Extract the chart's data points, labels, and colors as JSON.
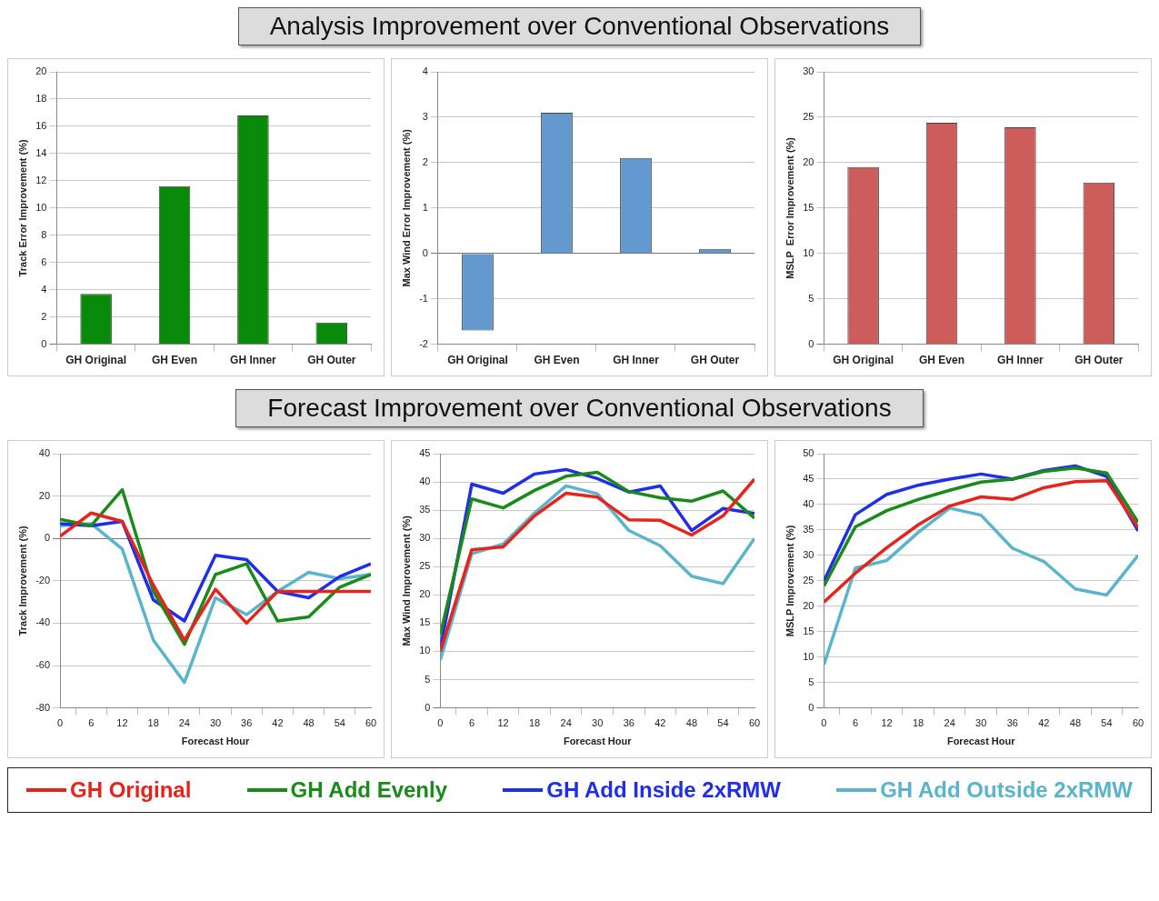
{
  "chart_data": [
    {
      "type": "bar",
      "title": "Analysis Improvement over Conventional Observations",
      "ylabel": "Track Error Improvement (%)",
      "categories": [
        "GH Original",
        "GH Even",
        "GH Inner",
        "GH Outer"
      ],
      "values": [
        3.7,
        11.6,
        16.8,
        1.6
      ],
      "color": "#0a8a0a",
      "ylim": [
        0,
        20
      ],
      "yticks": [
        0,
        2,
        4,
        6,
        8,
        10,
        12,
        14,
        16,
        18,
        20
      ],
      "grid": "y",
      "legend": false
    },
    {
      "type": "bar",
      "ylabel": "Max Wind Error Improvement (%)",
      "categories": [
        "GH Original",
        "GH Even",
        "GH Inner",
        "GH Outer"
      ],
      "values": [
        -1.7,
        3.1,
        2.1,
        0.1
      ],
      "color": "#6399cf",
      "ylim": [
        -2,
        4
      ],
      "yticks": [
        -2,
        -1,
        0,
        1,
        2,
        3,
        4
      ],
      "grid": "y",
      "legend": false
    },
    {
      "type": "bar",
      "ylabel": "MSLP  Error Improvement (%)",
      "categories": [
        "GH Original",
        "GH Even",
        "GH Inner",
        "GH Outer"
      ],
      "values": [
        19.5,
        24.4,
        23.9,
        17.8
      ],
      "color": "#cd5d5a",
      "ylim": [
        0,
        30
      ],
      "yticks": [
        0,
        5,
        10,
        15,
        20,
        25,
        30
      ],
      "grid": "y",
      "legend": false
    },
    {
      "type": "line",
      "title": "Forecast Improvement over Conventional Observations",
      "xlabel": "Forecast Hour",
      "ylabel": "Track Improvement (%)",
      "x": [
        0,
        6,
        12,
        18,
        24,
        30,
        36,
        42,
        48,
        54,
        60
      ],
      "xlim": [
        0,
        60
      ],
      "xticks": [
        0,
        6,
        12,
        18,
        24,
        30,
        36,
        42,
        48,
        54,
        60
      ],
      "ylim": [
        -80,
        40
      ],
      "yticks": [
        -80,
        -60,
        -40,
        -20,
        0,
        20,
        40
      ],
      "grid": "y",
      "marker": "none",
      "legend": "bottom",
      "series": [
        {
          "name": "GH Original",
          "color": "#e8231b",
          "values": [
            1,
            12,
            8,
            -22,
            -48,
            -24,
            -40,
            -25,
            -25,
            -25,
            -25
          ]
        },
        {
          "name": "GH Add Evenly",
          "color": "#1a8a1a",
          "values": [
            9,
            6,
            23,
            -25,
            -50,
            -17,
            -12,
            -39,
            -37,
            -23,
            -17
          ]
        },
        {
          "name": "GH Add Inside 2xRMW",
          "color": "#1f2ee8",
          "values": [
            7,
            6,
            8,
            -29,
            -39,
            -8,
            -10,
            -25,
            -28,
            -18,
            -12
          ]
        },
        {
          "name": "GH Add Outside 2xRMW",
          "color": "#5ab4cc",
          "values": [
            6,
            7,
            -5,
            -48,
            -68,
            -28,
            -36,
            -25,
            -16,
            -19,
            -17
          ]
        }
      ]
    },
    {
      "type": "line",
      "xlabel": "Forecast Hour",
      "ylabel": "Max Wind Improvement (%)",
      "x": [
        0,
        6,
        12,
        18,
        24,
        30,
        36,
        42,
        48,
        54,
        60
      ],
      "xlim": [
        0,
        60
      ],
      "xticks": [
        0,
        6,
        12,
        18,
        24,
        30,
        36,
        42,
        48,
        54,
        60
      ],
      "ylim": [
        0,
        45
      ],
      "yticks": [
        0,
        5,
        10,
        15,
        20,
        25,
        30,
        35,
        40,
        45
      ],
      "grid": "y",
      "marker": "none",
      "legend": false,
      "series": [
        {
          "color": "#e8231b",
          "values": [
            10,
            28,
            28.5,
            34,
            38,
            37.3,
            33.3,
            33.2,
            30.6,
            34,
            40.5
          ]
        },
        {
          "color": "#1a8a1a",
          "values": [
            13,
            37,
            35.4,
            38.5,
            41,
            41.7,
            38.3,
            37.2,
            36.6,
            38.4,
            33.6
          ]
        },
        {
          "color": "#1f2ee8",
          "values": [
            10.5,
            39.6,
            38,
            41.4,
            42.2,
            40.6,
            38.2,
            39.3,
            31.4,
            35.3,
            34.4
          ]
        },
        {
          "color": "#5ab4cc",
          "values": [
            8.5,
            27.3,
            29,
            34.5,
            39.3,
            37.9,
            31.4,
            28.7,
            23.3,
            22,
            30
          ]
        }
      ]
    },
    {
      "type": "line",
      "xlabel": "Forecast Hour",
      "ylabel": "MSLP Improvement (%)",
      "x": [
        0,
        6,
        12,
        18,
        24,
        30,
        36,
        42,
        48,
        54,
        60
      ],
      "xlim": [
        0,
        60
      ],
      "xticks": [
        0,
        6,
        12,
        18,
        24,
        30,
        36,
        42,
        48,
        54,
        60
      ],
      "ylim": [
        0,
        50
      ],
      "yticks": [
        0,
        5,
        10,
        15,
        20,
        25,
        30,
        35,
        40,
        45,
        50
      ],
      "grid": "y",
      "marker": "none",
      "legend": false,
      "series": [
        {
          "color": "#e8231b",
          "values": [
            20.8,
            26.5,
            31.5,
            36,
            39.7,
            41.5,
            41,
            43.3,
            44.5,
            44.7,
            35.5
          ]
        },
        {
          "color": "#1a8a1a",
          "values": [
            24,
            35.6,
            38.8,
            41,
            42.8,
            44.4,
            45,
            46.5,
            47.2,
            46.2,
            36.5
          ]
        },
        {
          "color": "#1f2ee8",
          "values": [
            25,
            38,
            42,
            43.8,
            45,
            46,
            45,
            46.7,
            47.6,
            45.5,
            34.8
          ]
        },
        {
          "color": "#5ab4cc",
          "values": [
            8.5,
            27.5,
            29,
            34.5,
            39.3,
            37.9,
            31.4,
            28.8,
            23.4,
            22.2,
            30
          ]
        }
      ]
    }
  ]
}
